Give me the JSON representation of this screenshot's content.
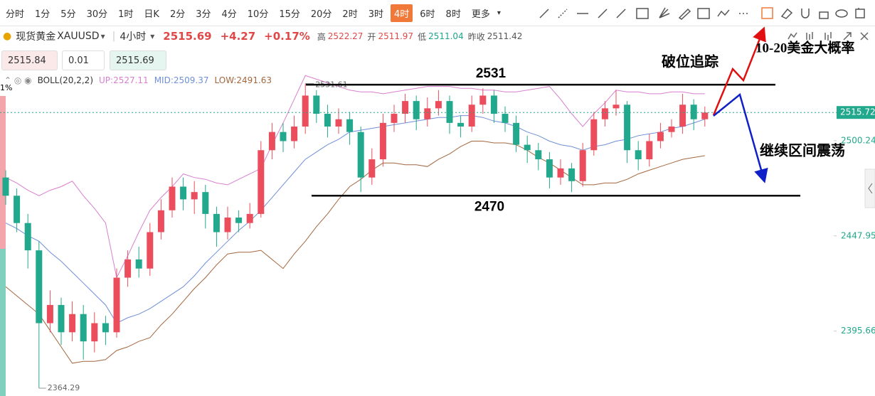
{
  "toolbar": {
    "periods": [
      "分时",
      "1分",
      "5分",
      "30分",
      "1时",
      "日K",
      "2分",
      "3分",
      "4分",
      "10分",
      "15分",
      "20分",
      "2时",
      "3时",
      "4时",
      "6时",
      "8时",
      "更多"
    ],
    "active_index": 14
  },
  "quote": {
    "name": "现货黄金",
    "symbol": "XAUUSD",
    "interval": "4小时",
    "price": "2515.69",
    "change": "+4.27",
    "change_pct": "+0.17%",
    "high_label": "高",
    "high": "2522.27",
    "open_label": "开",
    "open": "2511.97",
    "low_label": "低",
    "low": "2511.04",
    "prev_label": "昨收",
    "prev": "2511.42"
  },
  "order": {
    "sell": "2515.84",
    "qty": "0.01",
    "buy": "2515.69"
  },
  "indicator": {
    "name": "BOLL(20,2,2)",
    "up": "UP:2527.11",
    "mid": "MID:2509.37",
    "low": "LOW:2491.63"
  },
  "pane_label": "1%",
  "chart_data": {
    "type": "candlestick",
    "up_color": "#eb4d5c",
    "down_color": "#22a88c",
    "ylim": [
      2360,
      2540.4
    ],
    "yticks": [
      2500.24,
      2447.95,
      2395.66
    ],
    "last_price": 2515.72,
    "open": [
      2480,
      2470,
      2455,
      2440,
      2400,
      2410,
      2395,
      2405,
      2390,
      2400,
      2395,
      2425,
      2435,
      2430,
      2450,
      2462,
      2475,
      2468,
      2472,
      2460,
      2450,
      2458,
      2455,
      2460,
      2495,
      2505,
      2500,
      2508,
      2525,
      2515,
      2508,
      2512,
      2505,
      2480,
      2490,
      2510,
      2515,
      2522,
      2512,
      2518,
      2522,
      2510,
      2508,
      2520,
      2525,
      2515,
      2510,
      2498,
      2495,
      2490,
      2480,
      2485,
      2478,
      2495,
      2512,
      2518,
      2520,
      2495,
      2490,
      2500,
      2505,
      2508,
      2520,
      2512
    ],
    "high": [
      2484,
      2474,
      2460,
      2445,
      2418,
      2414,
      2412,
      2410,
      2406,
      2404,
      2430,
      2440,
      2442,
      2455,
      2468,
      2480,
      2480,
      2478,
      2476,
      2464,
      2464,
      2462,
      2466,
      2500,
      2510,
      2510,
      2514,
      2531.61,
      2528,
      2520,
      2518,
      2516,
      2508,
      2496,
      2515,
      2520,
      2526,
      2525,
      2524,
      2528,
      2525,
      2514,
      2525,
      2529,
      2528,
      2519,
      2514,
      2503,
      2499,
      2494,
      2490,
      2488,
      2499,
      2516,
      2522,
      2528,
      2522,
      2500,
      2504,
      2510,
      2512,
      2526,
      2523,
      2519
    ],
    "low": [
      2465,
      2450,
      2430,
      2364.29,
      2395,
      2388,
      2390,
      2380,
      2384,
      2388,
      2392,
      2420,
      2425,
      2426,
      2446,
      2458,
      2462,
      2460,
      2452,
      2442,
      2446,
      2450,
      2452,
      2458,
      2490,
      2494,
      2496,
      2504,
      2510,
      2502,
      2504,
      2498,
      2472,
      2476,
      2486,
      2505,
      2510,
      2506,
      2508,
      2514,
      2504,
      2502,
      2505,
      2515,
      2510,
      2505,
      2494,
      2488,
      2484,
      2474,
      2476,
      2472,
      2475,
      2492,
      2508,
      2514,
      2488,
      2484,
      2486,
      2496,
      2502,
      2504,
      2506,
      2508
    ],
    "close": [
      2470,
      2455,
      2440,
      2400,
      2410,
      2395,
      2405,
      2390,
      2400,
      2395,
      2425,
      2435,
      2430,
      2450,
      2462,
      2475,
      2468,
      2472,
      2460,
      2450,
      2458,
      2455,
      2460,
      2495,
      2505,
      2500,
      2508,
      2525,
      2515,
      2508,
      2512,
      2505,
      2480,
      2490,
      2510,
      2515,
      2522,
      2512,
      2518,
      2522,
      2510,
      2508,
      2520,
      2525,
      2515,
      2510,
      2498,
      2495,
      2490,
      2480,
      2485,
      2478,
      2495,
      2512,
      2518,
      2520,
      2495,
      2490,
      2500,
      2505,
      2508,
      2520,
      2512,
      2515.69
    ],
    "bands": [
      {
        "color": "#d87fcf",
        "values": [
          2480,
          2477,
          2473,
          2470,
          2473,
          2475,
          2478,
          2470,
          2463,
          2455,
          2425,
          2437,
          2450,
          2462,
          2469,
          2475,
          2482,
          2480,
          2479,
          2477,
          2476,
          2479,
          2482,
          2485,
          2498,
          2510,
          2523,
          2536,
          2534,
          2532,
          2530,
          2528,
          2527,
          2527,
          2526,
          2527,
          2528,
          2529,
          2530,
          2530,
          2530,
          2529,
          2529,
          2528,
          2528,
          2527,
          2527,
          2528,
          2529,
          2530,
          2523,
          2515,
          2508,
          2515,
          2521,
          2528,
          2527,
          2527,
          2526,
          2526,
          2527,
          2527,
          2526,
          2526
        ]
      },
      {
        "color": "#6f8fd8",
        "values": [
          2455,
          2452,
          2448,
          2445,
          2439,
          2434,
          2428,
          2422,
          2416,
          2410,
          2400,
          2403,
          2405,
          2408,
          2412,
          2416,
          2420,
          2426,
          2433,
          2439,
          2445,
          2451,
          2456,
          2462,
          2469,
          2476,
          2483,
          2490,
          2494,
          2498,
          2501,
          2505,
          2506,
          2507,
          2508,
          2509,
          2510,
          2511,
          2512,
          2513,
          2513,
          2514,
          2514,
          2513,
          2511,
          2510,
          2508,
          2505,
          2503,
          2500,
          2498,
          2497,
          2495,
          2497,
          2498,
          2500,
          2501,
          2503,
          2504,
          2505,
          2507,
          2508,
          2510,
          2512
        ]
      },
      {
        "color": "#a3673e",
        "values": [
          2420,
          2415,
          2410,
          2405,
          2396,
          2387,
          2378,
          2379,
          2379,
          2380,
          2385,
          2387,
          2390,
          2392,
          2399,
          2405,
          2412,
          2419,
          2425,
          2432,
          2438,
          2439,
          2439,
          2440,
          2435,
          2430,
          2438,
          2445,
          2453,
          2460,
          2468,
          2475,
          2479,
          2484,
          2488,
          2488,
          2487,
          2487,
          2486,
          2490,
          2493,
          2497,
          2500,
          2500,
          2499,
          2499,
          2498,
          2495,
          2491,
          2488,
          2484,
          2480,
          2476,
          2476,
          2477,
          2477,
          2479,
          2482,
          2484,
          2486,
          2488,
          2490,
          2491,
          2492
        ]
      }
    ],
    "levels": [
      2531,
      2470
    ],
    "annotations": [
      "破位追踪",
      "10-20美金大概率",
      "继续区间震荡"
    ]
  }
}
